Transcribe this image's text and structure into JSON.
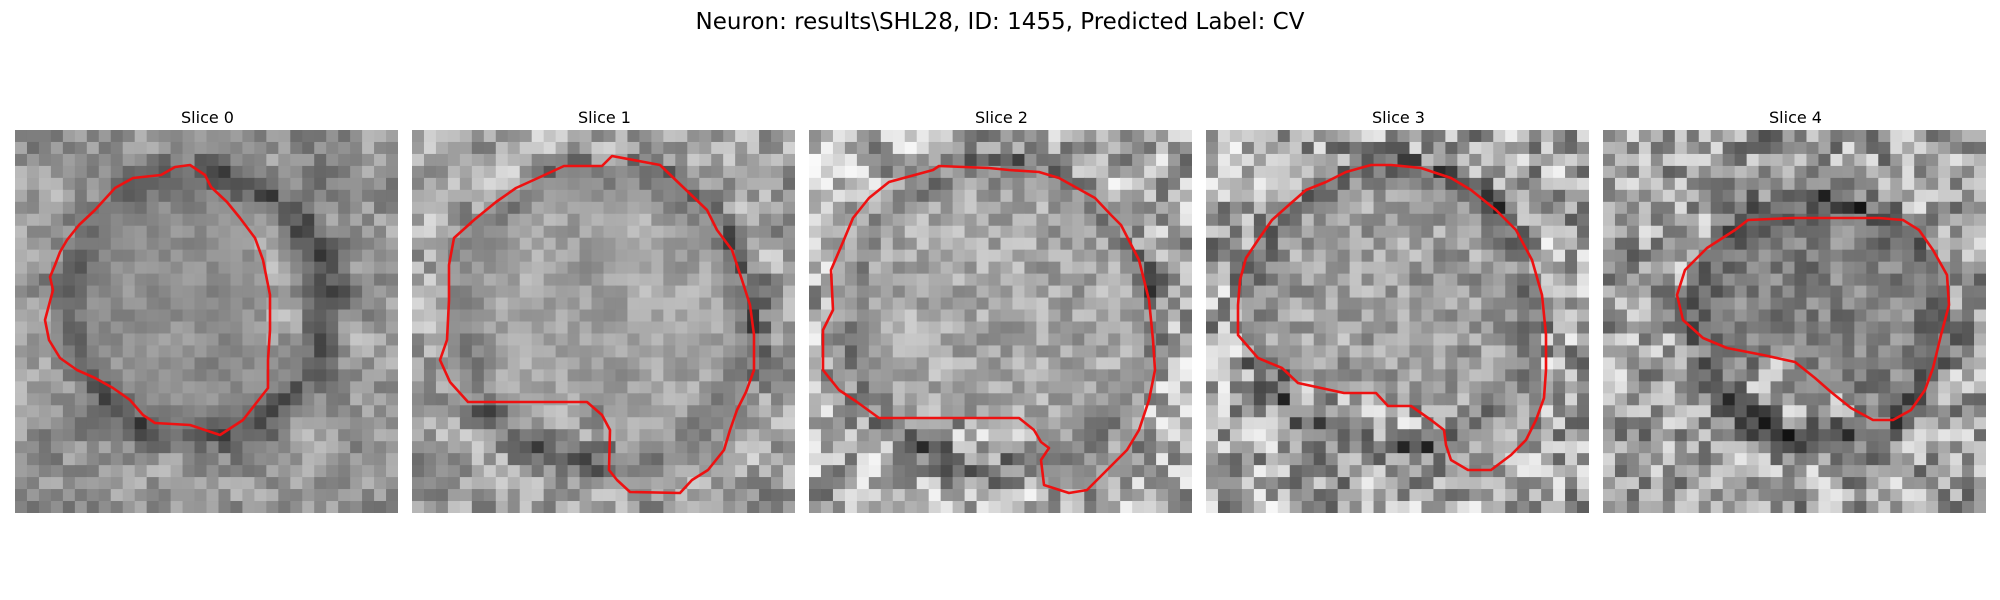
{
  "figure": {
    "title": "Neuron: results\\SHL28, ID: 1455, Predicted Label: CV"
  },
  "panels": [
    {
      "title": "Slice 0"
    },
    {
      "title": "Slice 1"
    },
    {
      "title": "Slice 2"
    },
    {
      "title": "Slice 3"
    },
    {
      "title": "Slice 4"
    }
  ],
  "colors": {
    "contour": "#ee1111",
    "background": "#ffffff"
  }
}
